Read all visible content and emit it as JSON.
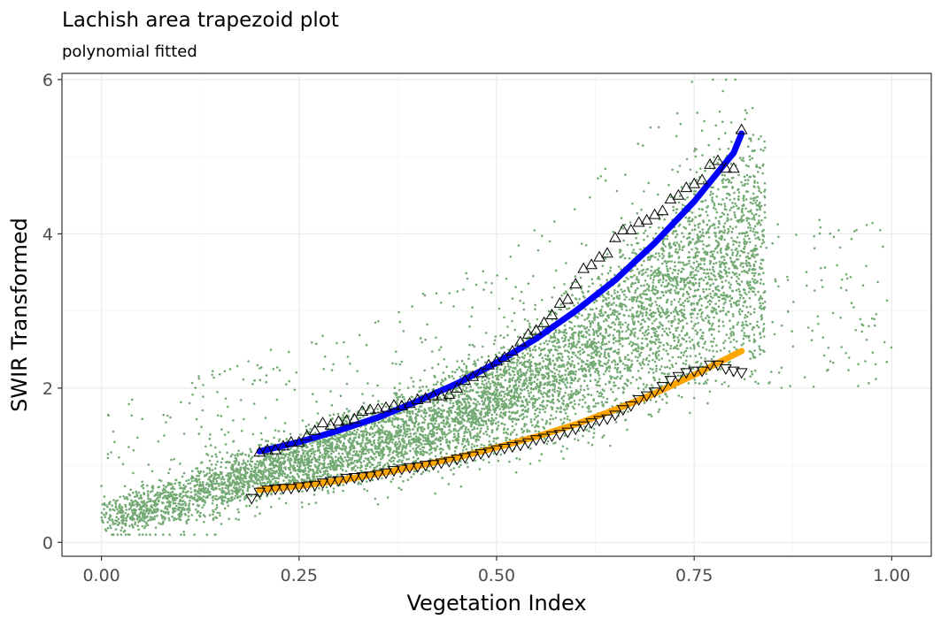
{
  "chart_data": {
    "type": "scatter",
    "title": "Lachish area trapezoid plot",
    "subtitle": "polynomial fitted",
    "xlabel": "Vegetation Index",
    "ylabel": "SWIR Transformed",
    "xlim": [
      -0.05,
      1.05
    ],
    "ylim": [
      -0.18,
      6.08
    ],
    "x_ticks": [
      0.0,
      0.25,
      0.5,
      0.75,
      1.0
    ],
    "x_tick_labels": [
      "0.00",
      "0.25",
      "0.50",
      "0.75",
      "1.00"
    ],
    "y_ticks": [
      0,
      2,
      4,
      6
    ],
    "y_tick_labels": [
      "0",
      "2",
      "4",
      "6"
    ],
    "grid": true,
    "colors": {
      "points": "#006400",
      "wet_edge_line": "#0000ff",
      "dry_edge_line": "#ffa500",
      "panel_border": "#333333",
      "grid_major": "#ebebeb"
    },
    "scatter_cloud": {
      "color": "#006400",
      "x_range": [
        0.0,
        1.0
      ],
      "y_range": [
        0.1,
        6.0
      ],
      "description_points": [
        {
          "x": 0.0,
          "y_low": 0.15,
          "y_high": 0.55
        },
        {
          "x": 0.1,
          "y_low": 0.2,
          "y_high": 0.9
        },
        {
          "x": 0.2,
          "y_low": 0.55,
          "y_high": 1.25
        },
        {
          "x": 0.3,
          "y_low": 0.75,
          "y_high": 1.6
        },
        {
          "x": 0.4,
          "y_low": 0.95,
          "y_high": 2.0
        },
        {
          "x": 0.5,
          "y_low": 1.2,
          "y_high": 2.5
        },
        {
          "x": 0.6,
          "y_low": 1.5,
          "y_high": 3.3
        },
        {
          "x": 0.7,
          "y_low": 1.9,
          "y_high": 4.3
        },
        {
          "x": 0.8,
          "y_low": 2.3,
          "y_high": 5.3
        }
      ]
    },
    "series": [
      {
        "name": "",
        "type": "line",
        "color": "#0000ff",
        "x": [
          0.2,
          0.25,
          0.3,
          0.35,
          0.4,
          0.45,
          0.5,
          0.55,
          0.6,
          0.65,
          0.7,
          0.75,
          0.8,
          0.81
        ],
        "y": [
          1.18,
          1.3,
          1.45,
          1.62,
          1.83,
          2.06,
          2.33,
          2.64,
          3.0,
          3.4,
          3.88,
          4.42,
          5.05,
          5.3
        ]
      },
      {
        "name": "",
        "type": "line",
        "color": "#ffa500",
        "x": [
          0.2,
          0.25,
          0.3,
          0.35,
          0.4,
          0.45,
          0.5,
          0.55,
          0.6,
          0.65,
          0.7,
          0.75,
          0.8,
          0.81
        ],
        "y": [
          0.68,
          0.73,
          0.8,
          0.89,
          0.99,
          1.1,
          1.23,
          1.37,
          1.53,
          1.72,
          1.93,
          2.17,
          2.43,
          2.48
        ]
      },
      {
        "name": "",
        "type": "points",
        "marker": "triangle-up",
        "x": [
          0.2,
          0.21,
          0.22,
          0.23,
          0.24,
          0.25,
          0.26,
          0.27,
          0.28,
          0.29,
          0.3,
          0.31,
          0.32,
          0.33,
          0.34,
          0.35,
          0.36,
          0.37,
          0.38,
          0.39,
          0.4,
          0.41,
          0.42,
          0.43,
          0.44,
          0.45,
          0.46,
          0.47,
          0.48,
          0.49,
          0.5,
          0.51,
          0.52,
          0.53,
          0.54,
          0.55,
          0.56,
          0.57,
          0.58,
          0.59,
          0.6,
          0.61,
          0.62,
          0.63,
          0.64,
          0.65,
          0.66,
          0.67,
          0.68,
          0.69,
          0.7,
          0.71,
          0.72,
          0.73,
          0.74,
          0.75,
          0.76,
          0.77,
          0.78,
          0.79,
          0.8,
          0.81
        ],
        "y": [
          1.17,
          1.2,
          1.2,
          1.25,
          1.3,
          1.3,
          1.38,
          1.45,
          1.55,
          1.52,
          1.57,
          1.58,
          1.6,
          1.7,
          1.72,
          1.73,
          1.75,
          1.78,
          1.77,
          1.8,
          1.85,
          1.87,
          1.9,
          1.9,
          1.92,
          2.0,
          2.1,
          2.15,
          2.2,
          2.3,
          2.35,
          2.4,
          2.48,
          2.6,
          2.7,
          2.75,
          2.85,
          2.95,
          3.1,
          3.15,
          3.35,
          3.55,
          3.6,
          3.7,
          3.75,
          3.95,
          4.05,
          4.05,
          4.15,
          4.18,
          4.25,
          4.3,
          4.45,
          4.5,
          4.6,
          4.65,
          4.7,
          4.9,
          4.95,
          4.85,
          4.85,
          5.35
        ]
      },
      {
        "name": "",
        "type": "points",
        "marker": "triangle-down",
        "x": [
          0.19,
          0.2,
          0.21,
          0.22,
          0.23,
          0.24,
          0.25,
          0.26,
          0.27,
          0.28,
          0.29,
          0.3,
          0.31,
          0.32,
          0.33,
          0.34,
          0.35,
          0.36,
          0.37,
          0.38,
          0.39,
          0.4,
          0.41,
          0.42,
          0.43,
          0.44,
          0.45,
          0.46,
          0.47,
          0.48,
          0.49,
          0.5,
          0.51,
          0.52,
          0.53,
          0.54,
          0.55,
          0.56,
          0.57,
          0.58,
          0.59,
          0.6,
          0.61,
          0.62,
          0.63,
          0.64,
          0.65,
          0.66,
          0.67,
          0.68,
          0.69,
          0.7,
          0.71,
          0.72,
          0.73,
          0.74,
          0.75,
          0.76,
          0.77,
          0.78,
          0.79,
          0.8,
          0.81
        ],
        "y": [
          0.57,
          0.65,
          0.68,
          0.69,
          0.7,
          0.7,
          0.72,
          0.73,
          0.74,
          0.77,
          0.79,
          0.8,
          0.83,
          0.84,
          0.85,
          0.86,
          0.88,
          0.9,
          0.93,
          0.95,
          0.97,
          0.98,
          1.0,
          1.01,
          1.03,
          1.05,
          1.08,
          1.1,
          1.12,
          1.15,
          1.17,
          1.2,
          1.22,
          1.24,
          1.26,
          1.29,
          1.33,
          1.35,
          1.38,
          1.4,
          1.43,
          1.47,
          1.51,
          1.55,
          1.58,
          1.6,
          1.65,
          1.72,
          1.77,
          1.85,
          1.9,
          1.95,
          2.02,
          2.1,
          2.15,
          2.2,
          2.22,
          2.22,
          2.3,
          2.3,
          2.25,
          2.22,
          2.2
        ]
      }
    ]
  }
}
